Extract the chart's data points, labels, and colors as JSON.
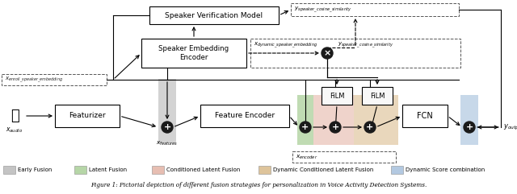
{
  "title": "Figure 1: Pictorial depiction of different fusion strategies for personalization in Voice Activity Detection Systems.",
  "bg_color": "#ffffff",
  "legend_items": [
    {
      "label": "Early Fusion",
      "color": "#b0b0b0"
    },
    {
      "label": "Latent Fusion",
      "color": "#9ec98a"
    },
    {
      "label": "Conditioned Latent Fusion",
      "color": "#e0a898"
    },
    {
      "label": "Dynamic Conditioned Latent Fusion",
      "color": "#d4b07a"
    },
    {
      "label": "Dynamic Score combination",
      "color": "#9ab8d8"
    }
  ]
}
